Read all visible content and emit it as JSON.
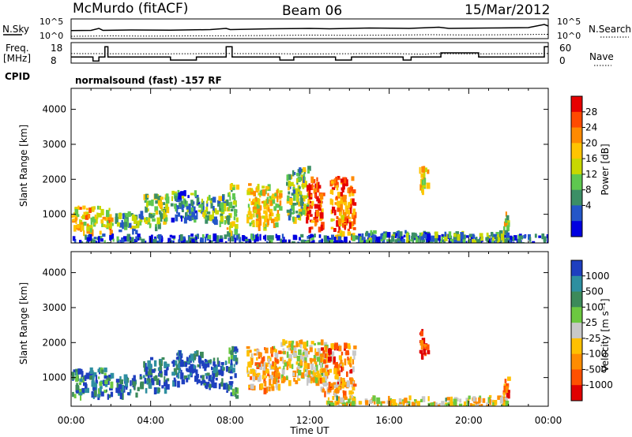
{
  "header": {
    "station": "McMurdo (fitACF)",
    "beam": "Beam 06",
    "date": "15/Mar/2012"
  },
  "summary": {
    "nsky_label": "N.Sky",
    "nsearch_label": "N.Search",
    "noise_ticks": [
      "10^5",
      "10^0"
    ],
    "freq_label": "Freq.",
    "freq_unit": "[MHz]",
    "freq_ticks": [
      "18",
      "8"
    ],
    "nave_label": "Nave",
    "nave_ticks": [
      "60",
      "0"
    ],
    "cpid_label": "CPID",
    "cpid_text": "normalsound (fast) -157 RF",
    "noise_sky": [
      [
        0,
        2.05
      ],
      [
        1,
        2.1
      ],
      [
        1.4,
        2.6
      ],
      [
        1.6,
        2.1
      ],
      [
        3,
        2.2
      ],
      [
        5,
        2.15
      ],
      [
        7,
        2.3
      ],
      [
        7.8,
        2.6
      ],
      [
        8,
        2.3
      ],
      [
        10,
        2.5
      ],
      [
        12,
        2.6
      ],
      [
        13,
        2.5
      ],
      [
        15,
        2.7
      ],
      [
        17,
        2.6
      ],
      [
        18.5,
        2.9
      ],
      [
        19,
        2.6
      ],
      [
        21,
        2.7
      ],
      [
        23,
        2.8
      ],
      [
        23.8,
        3.6
      ],
      [
        24,
        3.2
      ]
    ],
    "noise_search": [
      [
        0,
        0.6
      ],
      [
        2,
        0.7
      ],
      [
        4,
        0.65
      ],
      [
        6,
        0.7
      ],
      [
        8,
        0.75
      ],
      [
        10,
        0.8
      ],
      [
        12,
        0.9
      ],
      [
        14,
        0.85
      ],
      [
        16,
        0.9
      ],
      [
        18,
        1.0
      ],
      [
        20,
        0.95
      ],
      [
        22,
        1.0
      ],
      [
        24,
        1.1
      ]
    ],
    "freq": [
      [
        0,
        11
      ],
      [
        1.1,
        11
      ],
      [
        1.1,
        9
      ],
      [
        1.4,
        9
      ],
      [
        1.4,
        11
      ],
      [
        1.7,
        11
      ],
      [
        1.7,
        16
      ],
      [
        1.85,
        16
      ],
      [
        1.85,
        11
      ],
      [
        5,
        11
      ],
      [
        5,
        9.5
      ],
      [
        6.3,
        9.5
      ],
      [
        6.3,
        11
      ],
      [
        7.8,
        11
      ],
      [
        7.8,
        16
      ],
      [
        8.1,
        16
      ],
      [
        8.1,
        11
      ],
      [
        10.5,
        11
      ],
      [
        10.5,
        9.5
      ],
      [
        11.2,
        9.5
      ],
      [
        11.2,
        11
      ],
      [
        13.3,
        11
      ],
      [
        13.3,
        9.5
      ],
      [
        14.1,
        9.5
      ],
      [
        14.1,
        11
      ],
      [
        16.7,
        11
      ],
      [
        16.7,
        9.5
      ],
      [
        17.1,
        9.5
      ],
      [
        17.1,
        11
      ],
      [
        18.6,
        11
      ],
      [
        18.6,
        13
      ],
      [
        20.5,
        13
      ],
      [
        20.5,
        11
      ],
      [
        23.8,
        11
      ],
      [
        23.8,
        16
      ],
      [
        24,
        16
      ]
    ],
    "nave": [
      [
        0,
        28
      ],
      [
        4,
        27
      ],
      [
        8,
        28
      ],
      [
        12,
        27
      ],
      [
        16,
        28
      ],
      [
        17.8,
        26
      ],
      [
        18.2,
        28
      ],
      [
        20,
        27
      ],
      [
        24,
        28
      ]
    ]
  },
  "panels": [
    {
      "name": "power",
      "ylabel": "Slant Range [km]",
      "yticks": [
        "4000",
        "3000",
        "2000",
        "1000"
      ],
      "cbar_label": "Power [dB]",
      "cbar_ticks": [
        "28",
        "24",
        "20",
        "16",
        "12",
        "8",
        "4"
      ],
      "cbar_colors": [
        "#e60000",
        "#ff4a00",
        "#ff8a00",
        "#ffc400",
        "#c8d800",
        "#5ec850",
        "#3b8f66",
        "#2456c8",
        "#0000e0"
      ]
    },
    {
      "name": "velocity",
      "ylabel": "Slant Range [km]",
      "yticks": [
        "4000",
        "3000",
        "2000",
        "1000"
      ],
      "cbar_label": "Velocity [m s⁻¹]",
      "cbar_ticks": [
        "1000",
        "500",
        "100",
        "25",
        "-25",
        "-100",
        "-500",
        "-1000"
      ],
      "cbar_colors": [
        "#1e3fbf",
        "#2e8fa0",
        "#3c8a5a",
        "#6cc840",
        "#c8c8c8",
        "#ffc000",
        "#ff8c00",
        "#ff5000",
        "#e00000"
      ]
    }
  ],
  "chart_data": {
    "type": "heatmap",
    "title": "McMurdo (fitACF) Beam 06 15/Mar/2012",
    "xlabel": "Time UT",
    "ylabel": "Slant Range [km]",
    "x_ticks": [
      "00:00",
      "04:00",
      "08:00",
      "12:00",
      "16:00",
      "20:00",
      "00:00"
    ],
    "x_range_hours": [
      0,
      24
    ],
    "y_range_km": [
      180,
      4600
    ],
    "power_regions": [
      {
        "t0": 0.0,
        "t1": 2.0,
        "r0": 500,
        "r1": 1250,
        "level": 0.6
      },
      {
        "t0": 2.2,
        "t1": 3.5,
        "r0": 550,
        "r1": 1100,
        "level": 0.35
      },
      {
        "t0": 3.6,
        "t1": 4.8,
        "r0": 700,
        "r1": 1600,
        "level": 0.45
      },
      {
        "t0": 5.0,
        "t1": 6.5,
        "r0": 900,
        "r1": 1700,
        "level": 0.3
      },
      {
        "t0": 6.5,
        "t1": 7.8,
        "r0": 800,
        "r1": 1600,
        "level": 0.35
      },
      {
        "t0": 7.8,
        "t1": 8.3,
        "r0": 500,
        "r1": 1900,
        "level": 0.45
      },
      {
        "t0": 8.8,
        "t1": 10.5,
        "r0": 700,
        "r1": 1900,
        "level": 0.55
      },
      {
        "t0": 10.8,
        "t1": 11.9,
        "r0": 900,
        "r1": 2400,
        "level": 0.4
      },
      {
        "t0": 11.8,
        "t1": 12.6,
        "r0": 600,
        "r1": 2100,
        "level": 0.85
      },
      {
        "t0": 13.0,
        "t1": 14.2,
        "r0": 400,
        "r1": 2100,
        "level": 0.75
      },
      {
        "t0": 17.5,
        "t1": 17.9,
        "r0": 1600,
        "r1": 2400,
        "level": 0.6
      },
      {
        "t0": 21.7,
        "t1": 22.0,
        "r0": 500,
        "r1": 1100,
        "level": 0.5
      },
      {
        "t0": 0.0,
        "t1": 24.0,
        "r0": 180,
        "r1": 450,
        "level": 0.15
      },
      {
        "t0": 14.5,
        "t1": 22.0,
        "r0": 250,
        "r1": 550,
        "level": 0.3
      }
    ],
    "velocity_regions": [
      {
        "t0": 0.0,
        "t1": 2.0,
        "r0": 500,
        "r1": 1300,
        "level": 0.2
      },
      {
        "t0": 2.2,
        "t1": 3.5,
        "r0": 550,
        "r1": 1100,
        "level": 0.1
      },
      {
        "t0": 3.6,
        "t1": 4.8,
        "r0": 700,
        "r1": 1600,
        "level": 0.1
      },
      {
        "t0": 5.0,
        "t1": 6.5,
        "r0": 900,
        "r1": 1800,
        "level": 0.05
      },
      {
        "t0": 6.5,
        "t1": 7.8,
        "r0": 800,
        "r1": 1600,
        "level": 0.1
      },
      {
        "t0": 7.8,
        "t1": 8.3,
        "r0": 500,
        "r1": 1900,
        "level": 0.15
      },
      {
        "t0": 8.8,
        "t1": 10.5,
        "r0": 700,
        "r1": 1900,
        "level": 0.65
      },
      {
        "t0": 10.5,
        "t1": 12.8,
        "r0": 900,
        "r1": 2100,
        "level": 0.55
      },
      {
        "t0": 12.5,
        "t1": 14.2,
        "r0": 600,
        "r1": 2000,
        "level": 0.7
      },
      {
        "t0": 17.5,
        "t1": 17.9,
        "r0": 1600,
        "r1": 2400,
        "level": 0.9
      },
      {
        "t0": 21.7,
        "t1": 22.0,
        "r0": 500,
        "r1": 1100,
        "level": 0.75
      },
      {
        "t0": 12.8,
        "t1": 22.0,
        "r0": 180,
        "r1": 500,
        "level": 0.55
      }
    ]
  }
}
